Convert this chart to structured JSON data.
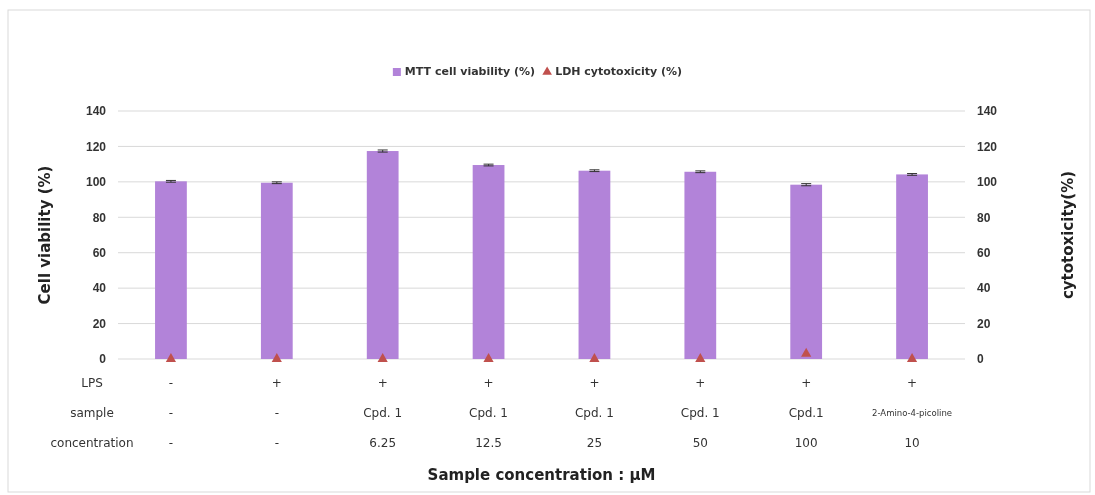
{
  "chart_data": {
    "type": "bar",
    "categories": [
      "-\n-\n-",
      "+\n-\n-",
      "+\nCpd. 1\n6.25",
      "+\nCpd. 1\n12.5",
      "+\nCpd. 1\n25",
      "+\nCpd. 1\n50",
      "+\nCpd.1\n100",
      "+\n2-Amino-4-picoline\n10"
    ],
    "series": [
      {
        "name": "MTT cell viability (%)",
        "color": "#b283d9",
        "values": [
          100.3,
          99.5,
          117.4,
          109.5,
          106.3,
          105.7,
          98.4,
          104.2
        ],
        "errors": [
          0.5,
          0.5,
          0.6,
          0.5,
          0.5,
          0.5,
          0.6,
          0.5
        ]
      },
      {
        "name": "LDH cytotoxicity (%)",
        "type": "scatter",
        "axis": "y2",
        "marker": "triangle",
        "color": "#c0504d",
        "values": [
          0,
          0,
          0,
          0,
          0,
          0,
          3,
          0
        ]
      }
    ],
    "ylim": [
      0,
      140
    ],
    "yticks": [
      0,
      20,
      40,
      60,
      80,
      100,
      120,
      140
    ],
    "y2lim": [
      0,
      140
    ],
    "y2ticks": [
      0,
      20,
      40,
      60,
      80,
      100,
      120,
      140
    ],
    "ylabel": "Cell viability  (%)",
    "y2label": "cytotoxicity(%)",
    "annotations": [
      "LPS",
      "sample",
      "concentration",
      "Sample concentration :  μM"
    ],
    "grid": "y",
    "legend": "top"
  }
}
